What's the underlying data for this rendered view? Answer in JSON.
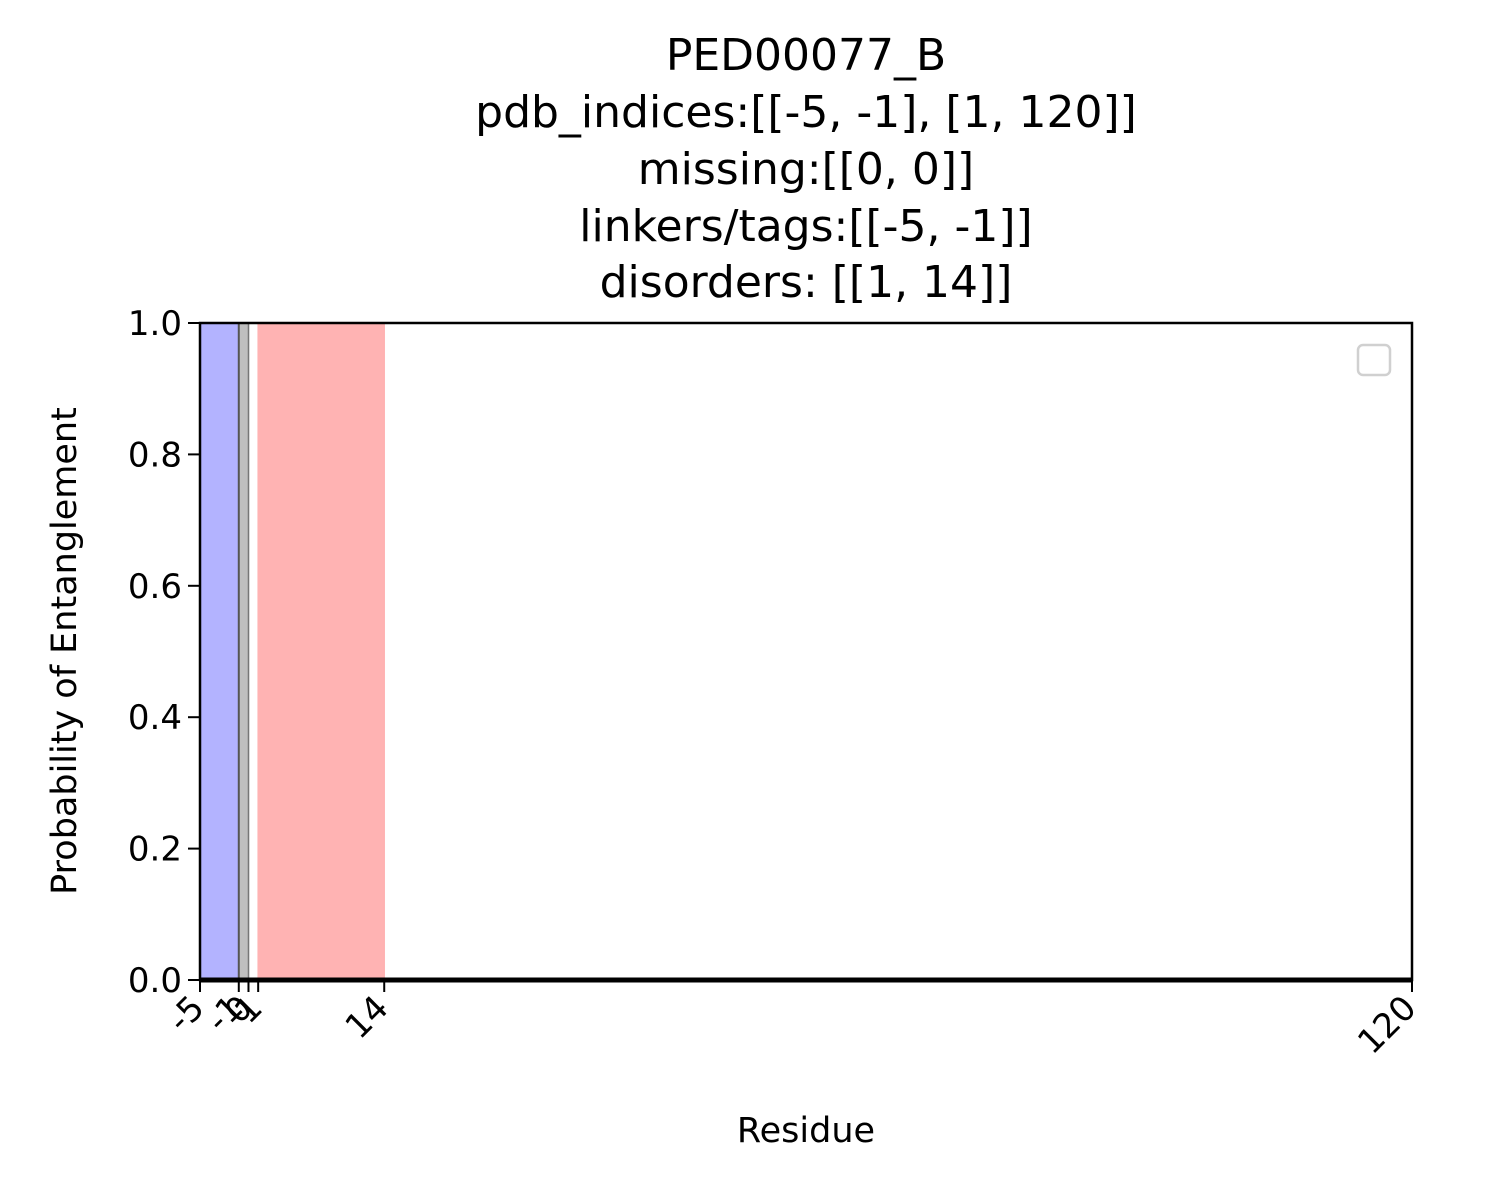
{
  "chart_data": {
    "type": "area",
    "title_lines": [
      "PED00077_B",
      "pdb_indices:[[-5, -1], [1, 120]]",
      "missing:[[0, 0]]",
      "linkers/tags:[[-5, -1]]",
      "disorders: [[1, 14]]"
    ],
    "xlabel": "Residue",
    "ylabel": "Probability of Entanglement",
    "xlim": [
      -5,
      120
    ],
    "ylim": [
      0,
      1
    ],
    "x_ticks": [
      -5,
      -1,
      0,
      1,
      14,
      120
    ],
    "y_ticks": [
      0.0,
      0.2,
      0.4,
      0.6,
      0.8,
      1.0
    ],
    "y_tick_labels": [
      "0.0",
      "0.2",
      "0.4",
      "0.6",
      "0.8",
      "1.0"
    ],
    "shaded_regions": [
      {
        "kind": "linkers/tags",
        "start": -5,
        "end": -1,
        "color": "#b3b3ff"
      },
      {
        "kind": "missing",
        "start": -1,
        "end": 0,
        "color": "#bfbfbf"
      },
      {
        "kind": "disorders",
        "start": 1,
        "end": 14,
        "color": "#ffb3b3"
      }
    ],
    "series": [
      {
        "x": [
          -5,
          120
        ],
        "y": [
          0,
          0
        ],
        "color": "#000000"
      }
    ],
    "legend": {
      "placement": "upper right",
      "entries": []
    }
  }
}
